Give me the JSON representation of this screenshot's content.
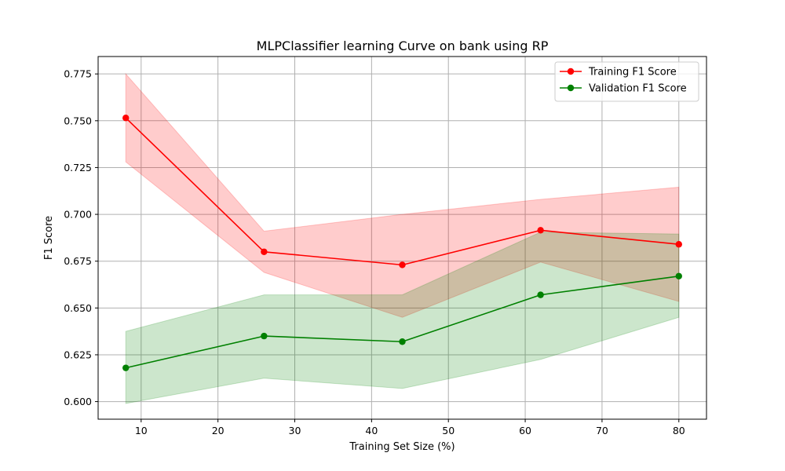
{
  "chart_data": {
    "type": "line",
    "title": "MLPClassifier learning Curve on bank using RP",
    "xlabel": "Training Set Size (%)",
    "ylabel": "F1 Score",
    "x": [
      8,
      26,
      44,
      62,
      80
    ],
    "xlim": [
      4.4,
      83.6
    ],
    "ylim": [
      0.5906,
      0.7843
    ],
    "xticks": [
      10,
      20,
      30,
      40,
      50,
      60,
      70,
      80
    ],
    "yticks": [
      0.6,
      0.625,
      0.65,
      0.675,
      0.7,
      0.725,
      0.75,
      0.775
    ],
    "xtick_labels": [
      "10",
      "20",
      "30",
      "40",
      "50",
      "60",
      "70",
      "80"
    ],
    "ytick_labels": [
      "0.600",
      "0.625",
      "0.650",
      "0.675",
      "0.700",
      "0.725",
      "0.750",
      "0.775"
    ],
    "grid": true,
    "legend_position": "upper right",
    "series": [
      {
        "name": "Training F1 Score",
        "color": "#ff0000",
        "band_color": "#ff0000",
        "values": [
          0.7515,
          0.68,
          0.673,
          0.6915,
          0.684
        ],
        "lower": [
          0.728,
          0.669,
          0.645,
          0.6745,
          0.6535
        ],
        "upper": [
          0.775,
          0.691,
          0.7,
          0.708,
          0.7145
        ]
      },
      {
        "name": "Validation F1 Score",
        "color": "#008000",
        "band_color": "#008000",
        "values": [
          0.618,
          0.635,
          0.632,
          0.657,
          0.667
        ],
        "lower": [
          0.599,
          0.6125,
          0.607,
          0.6225,
          0.645
        ],
        "upper": [
          0.6375,
          0.657,
          0.657,
          0.6905,
          0.6895
        ]
      }
    ]
  }
}
